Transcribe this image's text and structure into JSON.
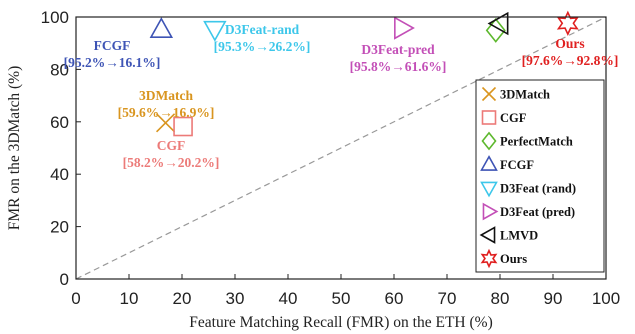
{
  "chart_data": {
    "type": "scatter",
    "xlabel": "Feature Matching Recall (FMR) on the ETH (%)",
    "ylabel": "FMR on the 3DMatch (%)",
    "xlim": [
      0,
      100
    ],
    "ylim": [
      0,
      100
    ],
    "xticks": [
      "0",
      "10",
      "20",
      "30",
      "40",
      "50",
      "60",
      "70",
      "80",
      "90",
      "100"
    ],
    "yticks": [
      "0",
      "20",
      "40",
      "60",
      "80",
      "100"
    ],
    "diagonal": {
      "from": [
        0,
        0
      ],
      "to": [
        100,
        100
      ],
      "style": "dashed",
      "color": "#999999"
    },
    "legend_position": "right",
    "series": [
      {
        "name": "3DMatch",
        "marker": "x",
        "color": "#D9951F",
        "x": [
          16.9
        ],
        "y": [
          59.6
        ]
      },
      {
        "name": "CGF",
        "marker": "square",
        "color": "#EC7A78",
        "x": [
          20.2
        ],
        "y": [
          58.2
        ]
      },
      {
        "name": "PerfectMatch",
        "marker": "diamond",
        "color": "#5DB82D",
        "x": [
          79.2
        ],
        "y": [
          94.9
        ]
      },
      {
        "name": "FCGF",
        "marker": "triangle-up",
        "color": "#3E54B5",
        "x": [
          16.1
        ],
        "y": [
          95.2
        ]
      },
      {
        "name": "D3Feat (rand)",
        "marker": "triangle-down",
        "color": "#3DC7EA",
        "x": [
          26.2
        ],
        "y": [
          95.3
        ]
      },
      {
        "name": "D3Feat (pred)",
        "marker": "triangle-right",
        "color": "#C34FB7",
        "x": [
          61.6
        ],
        "y": [
          95.8
        ]
      },
      {
        "name": "LMVD",
        "marker": "triangle-left",
        "color": "#111111",
        "x": [
          80.0
        ],
        "y": [
          97.5
        ]
      },
      {
        "name": "Ours",
        "marker": "hexagram",
        "color": "#E02020",
        "x": [
          92.8
        ],
        "y": [
          97.6
        ]
      }
    ],
    "annotations": [
      {
        "lines": [
          "FCGF",
          "[95.2%→16.1%]"
        ],
        "color": "#3E54B5"
      },
      {
        "lines": [
          "D3Feat-rand",
          "[95.3%→26.2%]"
        ],
        "color": "#3DC7EA"
      },
      {
        "lines": [
          "D3Feat-pred",
          "[95.8%→61.6%]"
        ],
        "color": "#C34FB7"
      },
      {
        "lines": [
          "Ours",
          "[97.6%→92.8%]"
        ],
        "color": "#E02020"
      },
      {
        "lines": [
          "3DMatch",
          "[59.6%→16.9%]"
        ],
        "color": "#D9951F"
      },
      {
        "lines": [
          "CGF",
          "[58.2%→20.2%]"
        ],
        "color": "#EC7A78"
      }
    ]
  }
}
